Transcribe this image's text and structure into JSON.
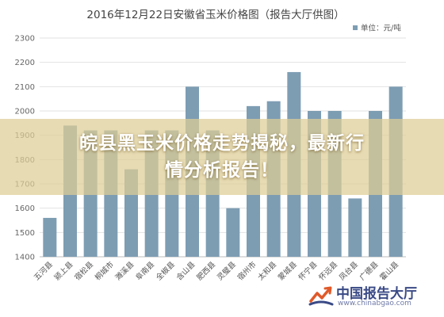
{
  "chart_data": {
    "type": "bar",
    "title": "2016年12月22日安徽省玉米价格图（报告大厅供图）",
    "legend_label": "单位：元/吨",
    "legend_position": "top-right",
    "categories": [
      "五河县",
      "颍上县",
      "宿松县",
      "桐城市",
      "濉溪县",
      "阜南县",
      "全椒县",
      "含山县",
      "肥西县",
      "灵璧县",
      "宿州市",
      "太和县",
      "蒙城县",
      "怀宁县",
      "怀远县",
      "凤台县",
      "广德县",
      "霍山县"
    ],
    "values": [
      1560,
      1940,
      1920,
      1920,
      1760,
      1920,
      1920,
      2100,
      1920,
      1600,
      2020,
      2040,
      2160,
      2000,
      2000,
      1640,
      2000,
      2100
    ],
    "yticks": [
      "1400",
      "1500",
      "1600",
      "1700",
      "1800",
      "1900",
      "2000",
      "2100",
      "2200",
      "2300"
    ],
    "ylim": [
      1400,
      2300
    ],
    "grid": true,
    "bar_color": "#7d9db3"
  },
  "overlay": {
    "line1": "皖县黑玉米价格走势揭秘，最新行",
    "line2": "情分析报告！"
  },
  "watermark": {
    "name": "中国报告大厅",
    "url": "www.chinabgao.com"
  }
}
